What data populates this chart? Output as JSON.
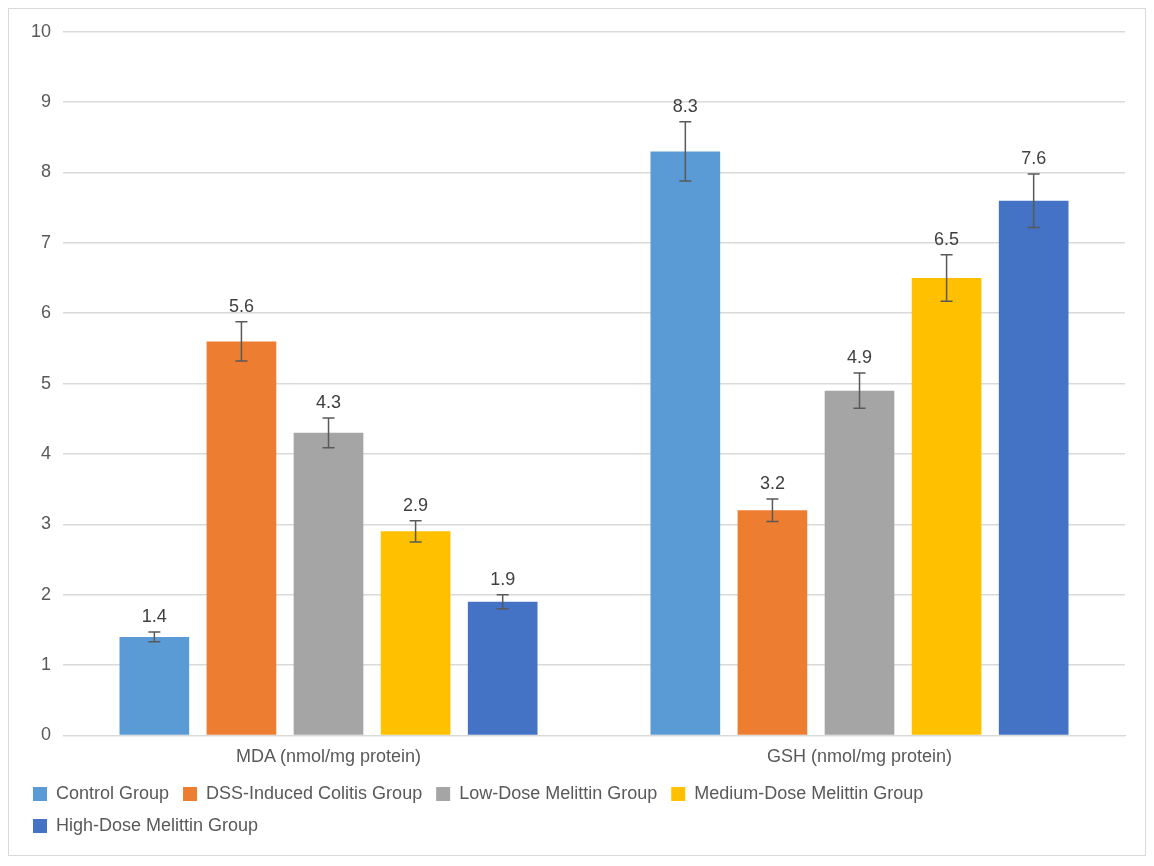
{
  "chart_data": {
    "type": "bar",
    "categories": [
      "MDA (nmol/mg protein)",
      "GSH (nmol/mg protein)"
    ],
    "series": [
      {
        "name": "Control Group",
        "color": "#5b9bd5",
        "values": [
          1.4,
          8.3
        ],
        "errors": [
          0.07,
          0.42
        ]
      },
      {
        "name": "DSS-Induced Colitis Group",
        "color": "#ed7d31",
        "values": [
          5.6,
          3.2
        ],
        "errors": [
          0.28,
          0.16
        ]
      },
      {
        "name": "Low-Dose Melittin Group",
        "color": "#a5a5a5",
        "values": [
          4.3,
          4.9
        ],
        "errors": [
          0.21,
          0.25
        ]
      },
      {
        "name": "Medium-Dose Melittin Group",
        "color": "#ffc000",
        "values": [
          2.9,
          6.5
        ],
        "errors": [
          0.15,
          0.33
        ]
      },
      {
        "name": "High-Dose Melittin Group",
        "color": "#4472c4",
        "values": [
          1.9,
          7.6
        ],
        "errors": [
          0.1,
          0.38
        ]
      }
    ],
    "ylim": [
      0,
      10
    ],
    "yticks": [
      0,
      1,
      2,
      3,
      4,
      5,
      6,
      7,
      8,
      9,
      10
    ],
    "grid": "y",
    "legend": "bottom",
    "data_labels": true
  }
}
